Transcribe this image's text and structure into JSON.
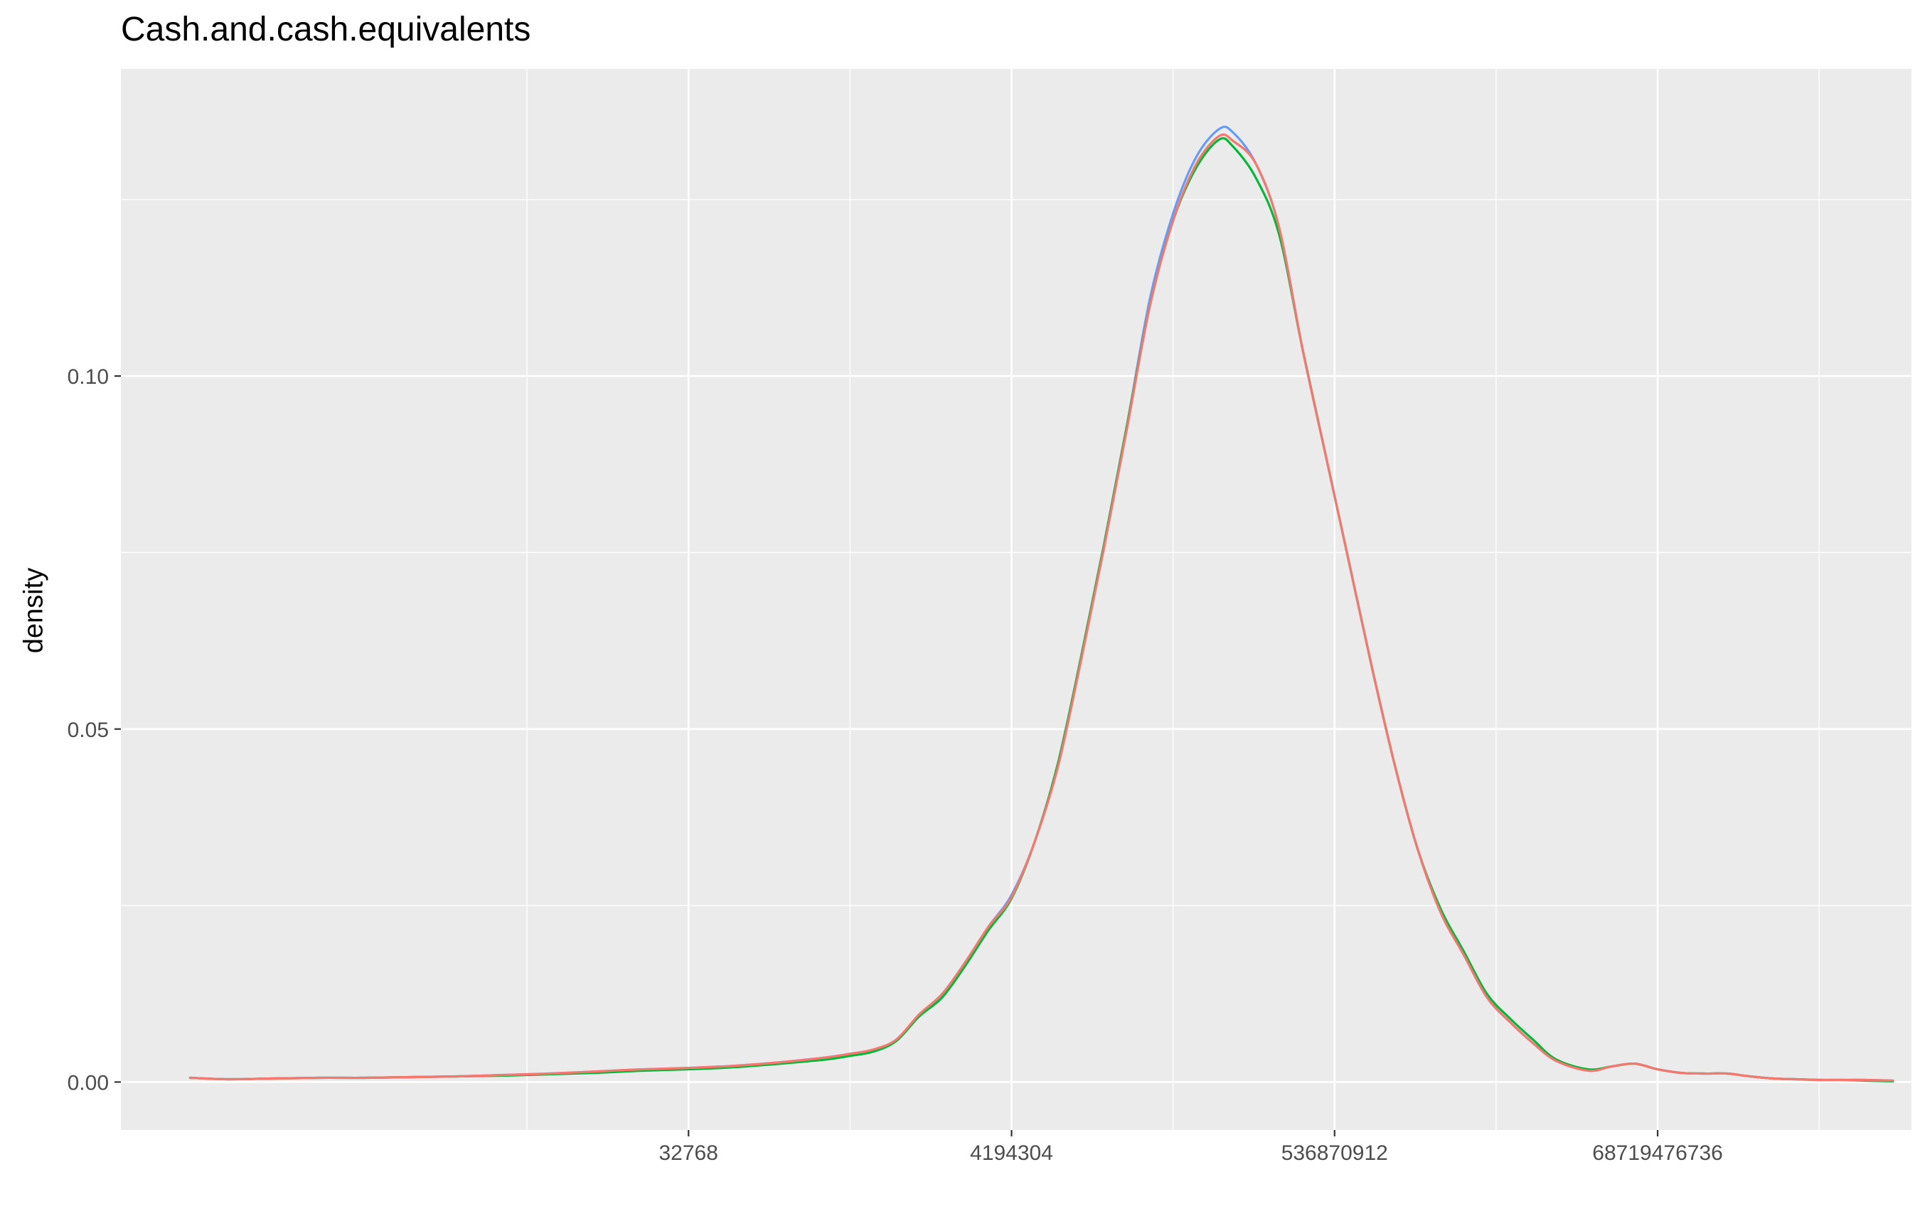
{
  "chart_data": {
    "type": "line",
    "title": "Cash.and.cash.equivalents",
    "xlabel": "",
    "ylabel": "density",
    "x_scale": "log2",
    "xlim": [
      2.7,
      41.5
    ],
    "ylim": [
      -0.0068,
      0.1435
    ],
    "x_ticks": [
      {
        "value": 15,
        "label": "32768"
      },
      {
        "value": 22,
        "label": "4194304"
      },
      {
        "value": 29,
        "label": "536870912"
      },
      {
        "value": 36,
        "label": "68719476736"
      }
    ],
    "y_ticks": [
      {
        "value": 0.0,
        "label": "0.00"
      },
      {
        "value": 0.05,
        "label": "0.05"
      },
      {
        "value": 0.1,
        "label": "0.10"
      }
    ],
    "grid": true,
    "legend": "none",
    "series": [
      {
        "color": "#619CFF",
        "x": [
          4.2,
          5,
          6,
          7,
          8,
          9,
          10,
          11,
          12,
          13,
          14,
          15,
          16,
          17,
          18,
          18.5,
          19,
          19.5,
          20,
          20.5,
          21,
          21.5,
          22,
          22.5,
          23,
          23.5,
          24,
          24.5,
          25,
          25.5,
          26,
          26.5,
          26.8,
          27.3,
          27.8,
          28.3,
          28.8,
          29.3,
          29.8,
          30.3,
          30.8,
          31.3,
          31.8,
          32.3,
          32.8,
          33.3,
          33.8,
          34.5,
          35,
          35.5,
          36,
          36.5,
          37,
          37.5,
          38,
          38.5,
          39,
          39.5,
          40,
          40.5,
          41.1
        ],
        "y": [
          0.0006,
          0.0004,
          0.0005,
          0.0006,
          0.0006,
          0.0007,
          0.0008,
          0.001,
          0.0012,
          0.0015,
          0.0018,
          0.002,
          0.0023,
          0.0028,
          0.0035,
          0.004,
          0.0045,
          0.006,
          0.0095,
          0.0125,
          0.017,
          0.022,
          0.0265,
          0.034,
          0.045,
          0.06,
          0.076,
          0.093,
          0.111,
          0.123,
          0.131,
          0.135,
          0.1345,
          0.13,
          0.121,
          0.104,
          0.089,
          0.074,
          0.059,
          0.045,
          0.033,
          0.024,
          0.018,
          0.012,
          0.0085,
          0.0055,
          0.003,
          0.0016,
          0.0022,
          0.0026,
          0.0018,
          0.0013,
          0.0012,
          0.0012,
          0.0008,
          0.0005,
          0.0004,
          0.0003,
          0.0003,
          0.0003,
          0.0002
        ]
      },
      {
        "color": "#00BA38",
        "x": [
          4.2,
          5,
          6,
          7,
          8,
          9,
          10,
          11,
          12,
          13,
          14,
          15,
          16,
          17,
          18,
          18.5,
          19,
          19.5,
          20,
          20.5,
          21,
          21.5,
          22,
          22.5,
          23,
          23.5,
          24,
          24.5,
          25,
          25.5,
          26,
          26.5,
          26.8,
          27.3,
          27.8,
          28.3,
          28.8,
          29.3,
          29.8,
          30.3,
          30.8,
          31.3,
          31.8,
          32.3,
          32.8,
          33.3,
          33.8,
          34.5,
          35,
          35.5,
          36,
          36.5,
          37,
          37.5,
          38,
          38.5,
          39,
          39.5,
          40,
          40.5,
          41.1
        ],
        "y": [
          0.0006,
          0.0004,
          0.0005,
          0.0006,
          0.0006,
          0.0007,
          0.0008,
          0.0009,
          0.0011,
          0.0013,
          0.0016,
          0.0018,
          0.0021,
          0.0026,
          0.0032,
          0.0037,
          0.0043,
          0.0058,
          0.0093,
          0.012,
          0.0165,
          0.0215,
          0.026,
          0.034,
          0.045,
          0.06,
          0.076,
          0.093,
          0.11,
          0.122,
          0.1295,
          0.1335,
          0.1325,
          0.128,
          0.12,
          0.104,
          0.089,
          0.074,
          0.059,
          0.045,
          0.033,
          0.0245,
          0.0185,
          0.0125,
          0.009,
          0.006,
          0.0032,
          0.0018,
          0.0022,
          0.0026,
          0.0018,
          0.0013,
          0.0012,
          0.0012,
          0.0008,
          0.0005,
          0.0004,
          0.0003,
          0.0003,
          0.0002,
          0.0001
        ]
      },
      {
        "color": "#F8766D",
        "x": [
          4.2,
          5,
          6,
          7,
          8,
          9,
          10,
          11,
          12,
          13,
          14,
          15,
          16,
          17,
          18,
          18.5,
          19,
          19.5,
          20,
          20.5,
          21,
          21.5,
          22,
          22.5,
          23,
          23.5,
          24,
          24.5,
          25,
          25.5,
          26,
          26.5,
          26.8,
          27.3,
          27.8,
          28.3,
          28.8,
          29.3,
          29.8,
          30.3,
          30.8,
          31.3,
          31.8,
          32.3,
          32.8,
          33.3,
          33.8,
          34.5,
          35,
          35.5,
          36,
          36.5,
          37,
          37.5,
          38,
          38.5,
          39,
          39.5,
          40,
          40.5,
          41.1
        ],
        "y": [
          0.0006,
          0.0004,
          0.0005,
          0.0006,
          0.0006,
          0.0007,
          0.0008,
          0.001,
          0.0012,
          0.0015,
          0.0018,
          0.002,
          0.0023,
          0.0028,
          0.0035,
          0.004,
          0.0046,
          0.006,
          0.0096,
          0.0125,
          0.017,
          0.022,
          0.0262,
          0.034,
          0.0445,
          0.0595,
          0.0755,
          0.0925,
          0.11,
          0.122,
          0.13,
          0.134,
          0.1333,
          0.13,
          0.121,
          0.104,
          0.089,
          0.074,
          0.059,
          0.045,
          0.033,
          0.024,
          0.018,
          0.012,
          0.0085,
          0.0055,
          0.003,
          0.0016,
          0.0022,
          0.0026,
          0.0018,
          0.0013,
          0.0012,
          0.0012,
          0.0008,
          0.0005,
          0.0004,
          0.0003,
          0.0003,
          0.0003,
          0.0002
        ]
      }
    ]
  }
}
